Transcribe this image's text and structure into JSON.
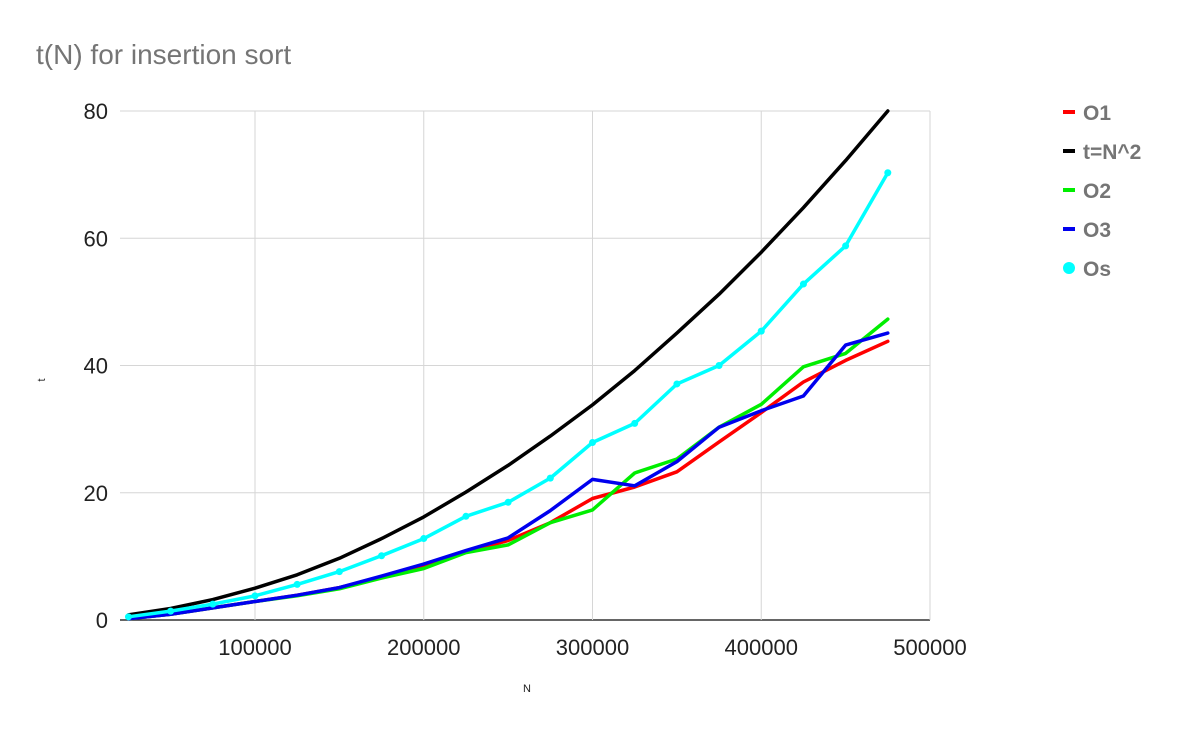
{
  "chart_data": {
    "type": "line",
    "title": "t(N) for insertion sort",
    "xlabel": "N",
    "ylabel": "t",
    "xlim": [
      20000,
      500000
    ],
    "ylim": [
      0,
      80
    ],
    "x_ticks": [
      100000,
      200000,
      300000,
      400000,
      500000
    ],
    "y_ticks": [
      0,
      20,
      40,
      60,
      80
    ],
    "grid": true,
    "legend_position": "right",
    "x": [
      25000,
      50000,
      75000,
      100000,
      125000,
      150000,
      175000,
      200000,
      225000,
      250000,
      275000,
      300000,
      325000,
      350000,
      375000,
      400000,
      425000,
      450000,
      475000
    ],
    "series": [
      {
        "name": "O1",
        "color": "#ff0000",
        "marker": "line",
        "values": [
          0.2,
          0.9,
          1.9,
          2.9,
          3.9,
          5.1,
          6.7,
          8.5,
          10.7,
          12.5,
          15.3,
          19.1,
          20.9,
          23.3,
          28.0,
          32.6,
          37.4,
          40.8,
          43.8
        ]
      },
      {
        "name": "t=N^2",
        "color": "#000000",
        "marker": "line",
        "values": [
          0.8,
          1.8,
          3.2,
          5.0,
          7.1,
          9.7,
          12.8,
          16.2,
          20.1,
          24.3,
          28.9,
          33.8,
          39.2,
          45.1,
          51.2,
          57.8,
          64.8,
          72.2,
          80.0
        ]
      },
      {
        "name": "O2",
        "color": "#00ee00",
        "marker": "line",
        "values": [
          0.2,
          0.9,
          1.9,
          2.9,
          3.8,
          4.9,
          6.6,
          8.1,
          10.6,
          11.8,
          15.3,
          17.3,
          23.1,
          25.3,
          30.3,
          33.9,
          39.8,
          41.9,
          47.3
        ]
      },
      {
        "name": "O3",
        "color": "#0000ee",
        "marker": "line",
        "values": [
          0.2,
          0.9,
          1.9,
          2.9,
          3.9,
          5.1,
          6.9,
          8.8,
          10.9,
          12.9,
          17.2,
          22.1,
          21.1,
          24.9,
          30.3,
          32.9,
          35.2,
          43.2,
          45.1
        ]
      },
      {
        "name": "Os",
        "color": "#00ffff",
        "marker": "dot",
        "values": [
          0.5,
          1.4,
          2.5,
          3.8,
          5.6,
          7.6,
          10.1,
          12.8,
          16.3,
          18.5,
          22.3,
          27.9,
          30.9,
          37.1,
          40.0,
          45.4,
          52.8,
          58.8,
          70.3
        ]
      }
    ]
  }
}
